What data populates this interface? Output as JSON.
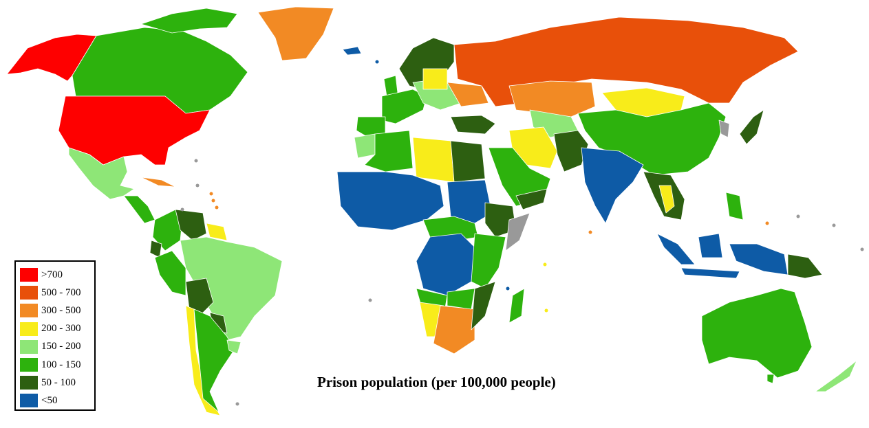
{
  "title": "Prison population (per 100,000 people)",
  "legend": [
    {
      "label": ">700",
      "color": "#fe0000"
    },
    {
      "label": "500 - 700",
      "color": "#e8500a"
    },
    {
      "label": "300 - 500",
      "color": "#f28a24"
    },
    {
      "label": "200 - 300",
      "color": "#f8ec1a"
    },
    {
      "label": "150 - 200",
      "color": "#8ee677"
    },
    {
      "label": "100 - 150",
      "color": "#2db20d"
    },
    {
      "label": "50 - 100",
      "color": "#2d5f11"
    },
    {
      "label": "<50",
      "color": "#0e5ba6"
    }
  ],
  "no_data_color": "#999999",
  "ocean_color": "#ffffff"
}
